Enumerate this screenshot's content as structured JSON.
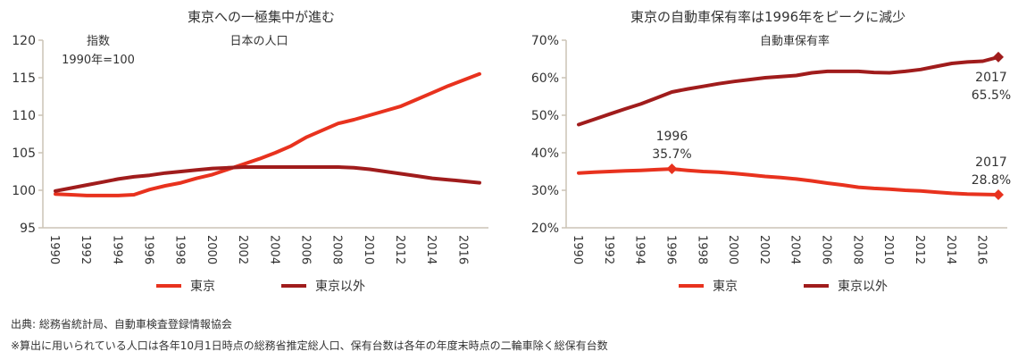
{
  "chart_data": [
    {
      "type": "line",
      "title": "東京への一極集中が進む",
      "subtitle": "日本の人口",
      "ylabel": "指数\n1990年=100",
      "ylabel_lines": [
        "指数",
        "1990年=100"
      ],
      "ylim": [
        95,
        120
      ],
      "yticks": [
        "95",
        "100",
        "105",
        "110",
        "115",
        "120"
      ],
      "x": [
        1990,
        1991,
        1992,
        1993,
        1994,
        1995,
        1996,
        1997,
        1998,
        1999,
        2000,
        2001,
        2002,
        2003,
        2004,
        2005,
        2006,
        2007,
        2008,
        2009,
        2010,
        2011,
        2012,
        2013,
        2014,
        2015,
        2016,
        2017
      ],
      "xticks": [
        "1990",
        "1992",
        "1994",
        "1996",
        "1998",
        "2000",
        "2002",
        "2004",
        "2006",
        "2008",
        "2010",
        "2012",
        "2014",
        "2016"
      ],
      "grid": false,
      "legend": "bottom",
      "series": [
        {
          "name": "東京",
          "color": "#e8321e",
          "values": [
            99.5,
            99.4,
            99.3,
            99.3,
            99.3,
            99.4,
            100.1,
            100.6,
            101.0,
            101.6,
            102.1,
            102.8,
            103.5,
            104.2,
            105.0,
            105.9,
            107.1,
            108.0,
            108.9,
            109.4,
            110.0,
            110.6,
            111.2,
            112.1,
            113.0,
            113.9,
            114.7,
            115.5
          ]
        },
        {
          "name": "東京以外",
          "color": "#a01c1c",
          "values": [
            99.9,
            100.3,
            100.7,
            101.1,
            101.5,
            101.8,
            102.0,
            102.3,
            102.5,
            102.7,
            102.9,
            103.0,
            103.1,
            103.1,
            103.1,
            103.1,
            103.1,
            103.1,
            103.1,
            103.0,
            102.8,
            102.5,
            102.2,
            101.9,
            101.6,
            101.4,
            101.2,
            101.0
          ]
        }
      ]
    },
    {
      "type": "line",
      "title": "東京の自動車保有率は1996年をピークに減少",
      "subtitle": "自動車保有率",
      "ylim": [
        20,
        70
      ],
      "yticks": [
        "20%",
        "30%",
        "40%",
        "50%",
        "60%",
        "70%"
      ],
      "x": [
        1990,
        1991,
        1992,
        1993,
        1994,
        1995,
        1996,
        1997,
        1998,
        1999,
        2000,
        2001,
        2002,
        2003,
        2004,
        2005,
        2006,
        2007,
        2008,
        2009,
        2010,
        2011,
        2012,
        2013,
        2014,
        2015,
        2016,
        2017
      ],
      "xticks": [
        "1990",
        "1992",
        "1994",
        "1996",
        "1998",
        "2000",
        "2002",
        "2004",
        "2006",
        "2008",
        "2010",
        "2012",
        "2014",
        "2016"
      ],
      "grid": false,
      "legend": "bottom",
      "series": [
        {
          "name": "東京",
          "color": "#e8321e",
          "values": [
            34.6,
            34.8,
            35.0,
            35.2,
            35.3,
            35.5,
            35.7,
            35.3,
            35.0,
            34.8,
            34.5,
            34.1,
            33.7,
            33.4,
            33.0,
            32.5,
            31.9,
            31.4,
            30.8,
            30.5,
            30.3,
            30.0,
            29.8,
            29.5,
            29.2,
            29.0,
            28.9,
            28.8
          ]
        },
        {
          "name": "東京以外",
          "color": "#a01c1c",
          "values": [
            47.5,
            48.9,
            50.3,
            51.7,
            53.0,
            54.6,
            56.2,
            57.0,
            57.7,
            58.4,
            59.0,
            59.5,
            60.0,
            60.3,
            60.6,
            61.3,
            61.7,
            61.7,
            61.7,
            61.4,
            61.3,
            61.7,
            62.2,
            63.0,
            63.8,
            64.2,
            64.4,
            65.5
          ]
        }
      ],
      "annotations": [
        {
          "series": "東京",
          "x": 1996,
          "lines": [
            "1996",
            "35.7%"
          ]
        },
        {
          "series": "東京",
          "x": 2017,
          "lines": [
            "2017",
            "28.8%"
          ]
        },
        {
          "series": "東京以外",
          "x": 2017,
          "lines": [
            "2017",
            "65.5%"
          ]
        }
      ]
    }
  ],
  "footnotes": {
    "source": "出典: 総務省統計局、自動車検査登録情報協会",
    "note": "※算出に用いられている人口は各年10月1日時点の総務省推定総人口、保有台数は各年の年度末時点の二輪車除く総保有台数"
  }
}
